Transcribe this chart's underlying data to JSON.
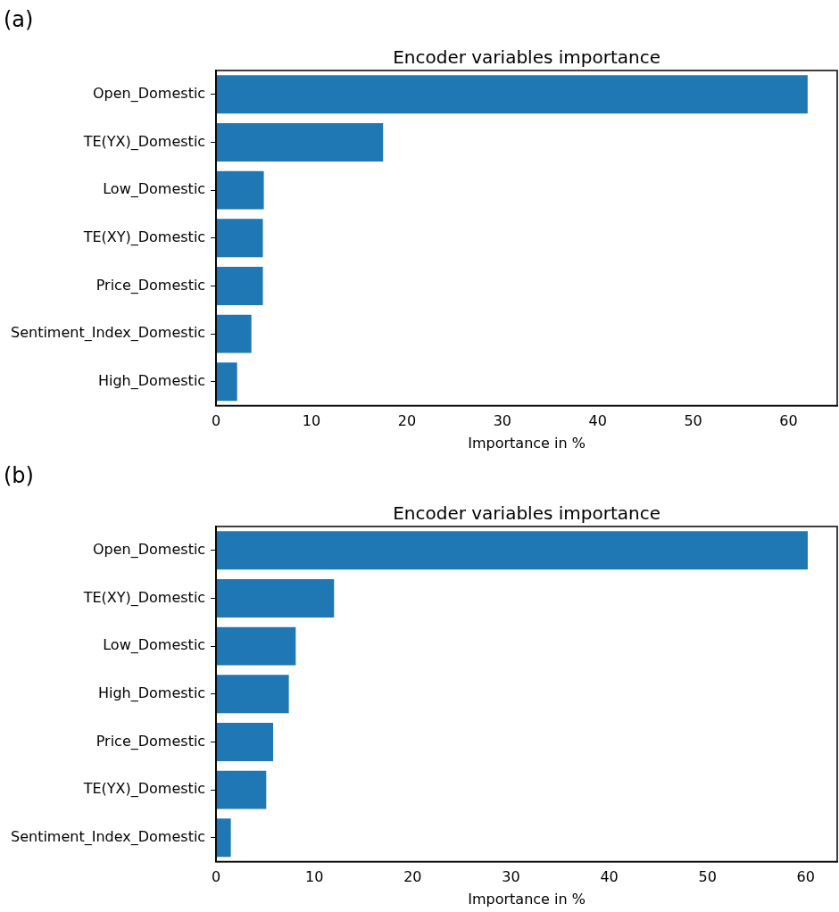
{
  "chart_data": [
    {
      "type": "bar",
      "orientation": "horizontal",
      "title": "Encoder variables importance",
      "xlabel": "Importance in %",
      "annotations": [
        "(a)"
      ],
      "categories": [
        "Open_Domestic",
        "TE(YX)_Domestic",
        "Low_Domestic",
        "TE(XY)_Domestic",
        "Price_Domestic",
        "Sentiment_Index_Domestic",
        "High_Domestic"
      ],
      "values": [
        62.0,
        17.5,
        5.0,
        4.9,
        4.9,
        3.7,
        2.2
      ],
      "color": "#1f77b4",
      "xlim": [
        0,
        65.1
      ],
      "xticks": [
        0,
        10,
        20,
        30,
        40,
        50,
        60
      ],
      "grid": false,
      "legend": false
    },
    {
      "type": "bar",
      "orientation": "horizontal",
      "title": "Encoder variables importance",
      "xlabel": "Importance in %",
      "annotations": [
        "(b)"
      ],
      "categories": [
        "Open_Domestic",
        "TE(XY)_Domestic",
        "Low_Domestic",
        "High_Domestic",
        "Price_Domestic",
        "TE(YX)_Domestic",
        "Sentiment_Index_Domestic"
      ],
      "values": [
        60.2,
        12.0,
        8.1,
        7.4,
        5.8,
        5.1,
        1.5
      ],
      "color": "#1f77b4",
      "xlim": [
        0,
        63.2
      ],
      "xticks": [
        0,
        10,
        20,
        30,
        40,
        50,
        60
      ],
      "grid": false,
      "legend": false
    }
  ]
}
